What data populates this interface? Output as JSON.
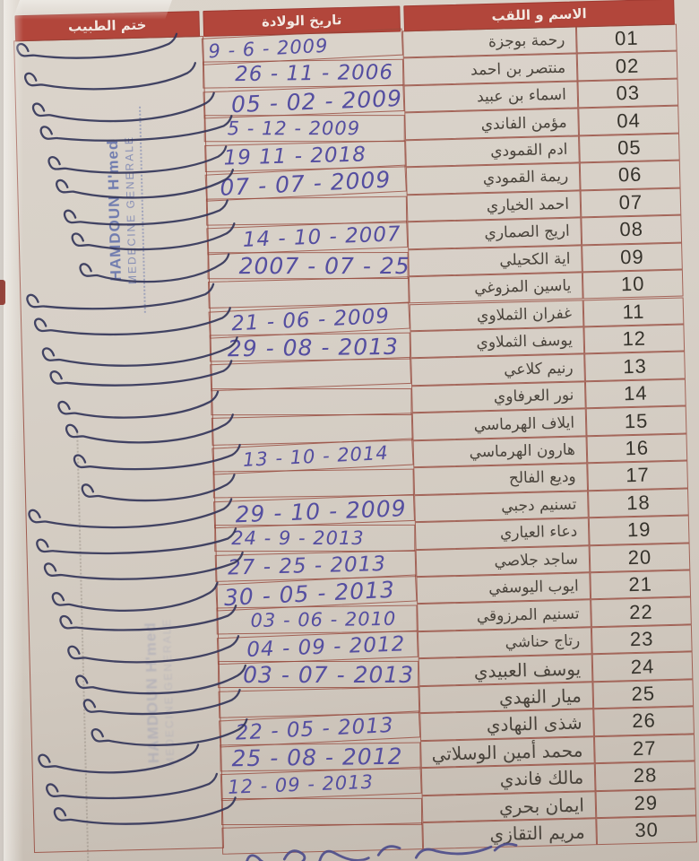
{
  "table": {
    "headers": {
      "name": "الاسم و اللقب",
      "birthdate": "تاريخ الولادة",
      "stamp": "ختم الطبيب"
    },
    "rows": [
      {
        "num": "01",
        "name": "رحمة بوجزة",
        "dob": "9 - 6 - 2009",
        "stamped": true
      },
      {
        "num": "02",
        "name": "منتصر بن احمد",
        "dob": "26 - 11 - 2006",
        "stamped": true
      },
      {
        "num": "03",
        "name": "اسماء بن عبيد",
        "dob": "05 - 02 - 2009",
        "stamped": true
      },
      {
        "num": "04",
        "name": "مؤمن الفاندي",
        "dob": "5 - 12 - 2009",
        "stamped": true
      },
      {
        "num": "05",
        "name": "ادم القمودي",
        "dob": "19 11 - 2018",
        "stamped": true
      },
      {
        "num": "06",
        "name": "ريمة القمودي",
        "dob": "07 - 07 - 2009",
        "stamped": true
      },
      {
        "num": "07",
        "name": "احمد الخياري",
        "dob": "",
        "stamped": true
      },
      {
        "num": "08",
        "name": "اريج الصماري",
        "dob": "14 - 10 - 2007",
        "stamped": true
      },
      {
        "num": "09",
        "name": "اية الكحيلي",
        "dob": "2007 - 07 - 25",
        "stamped": true
      },
      {
        "num": "10",
        "name": "ياسين المزوغي",
        "dob": "",
        "stamped": true
      },
      {
        "num": "11",
        "name": "غفران الثملاوي",
        "dob": "21 - 06 - 2009",
        "stamped": true
      },
      {
        "num": "12",
        "name": "يوسف الثملاوي",
        "dob": "29 - 08 - 2013",
        "stamped": true
      },
      {
        "num": "13",
        "name": "رنيم كلاعي",
        "dob": "",
        "stamped": true
      },
      {
        "num": "14",
        "name": "نور العرفاوي",
        "dob": "",
        "stamped": true
      },
      {
        "num": "15",
        "name": "ايلاف الهرماسي",
        "dob": "",
        "stamped": true
      },
      {
        "num": "16",
        "name": "هارون الهرماسي",
        "dob": "13 - 10 - 2014",
        "stamped": true
      },
      {
        "num": "17",
        "name": "وديع الفالح",
        "dob": "",
        "stamped": true
      },
      {
        "num": "18",
        "name": "تسنيم دجبي",
        "dob": "29 - 10 - 2009",
        "stamped": true
      },
      {
        "num": "19",
        "name": "دعاء العياري",
        "dob": "24 - 9 - 2013",
        "stamped": true
      },
      {
        "num": "20",
        "name": "ساجد جلاصي",
        "dob": "27 - 25 - 2013",
        "stamped": true
      },
      {
        "num": "21",
        "name": "ايوب اليوسفي",
        "dob": "30 - 05 - 2013",
        "stamped": true
      },
      {
        "num": "22",
        "name": "تسنيم المرزوقي",
        "dob": "03 - 06 - 2010",
        "stamped": true
      },
      {
        "num": "23",
        "name": "رتاج حناشي",
        "dob": "04 - 09 - 2012",
        "stamped": true
      },
      {
        "num": "24",
        "name": "يوسف العبيدي",
        "dob": "03 - 07 - 2013",
        "stamped": true
      },
      {
        "num": "25",
        "name": "ميار النهدي",
        "dob": "",
        "stamped": true
      },
      {
        "num": "26",
        "name": "شذى النهادي",
        "dob": "22 - 05 - 2013",
        "stamped": true
      },
      {
        "num": "27",
        "name": "محمد أمين الوسلاتي",
        "dob": "25 - 08 - 2012",
        "stamped": true
      },
      {
        "num": "28",
        "name": "مالك فاندي",
        "dob": "12 - 09 - 2013",
        "stamped": true
      },
      {
        "num": "29",
        "name": "ايمان بحري",
        "dob": "",
        "stamped": true
      },
      {
        "num": "30",
        "name": "مريم التقازي",
        "dob": "",
        "stamped": false
      }
    ]
  },
  "stamp": {
    "line1": "HAMDOUN H'med",
    "line2": "MEDECINE GENERALE"
  },
  "colors": {
    "header_bg": "#b2463b",
    "table_border": "#9c5248",
    "paper": "#d7d0c7",
    "handwriting_ink": "#544ea0",
    "checkmark_ink": "#34365a",
    "name_text": "#49433b",
    "row_number_text": "#36332c",
    "stamp_ink": "#485ca5"
  }
}
